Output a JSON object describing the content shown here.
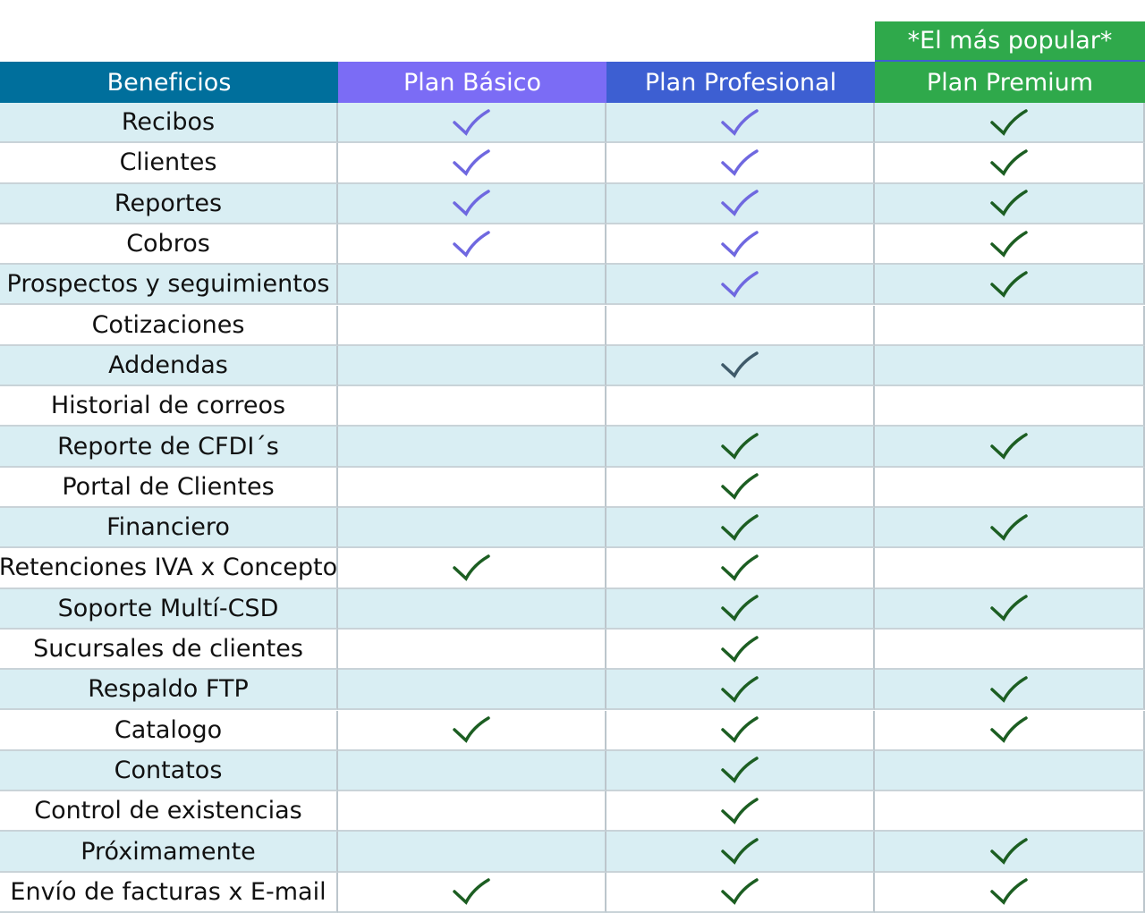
{
  "badge": "*El más popular*",
  "header": [
    "Beneficios",
    "Plan Básico",
    "Plan Profesional",
    "Plan Premium"
  ],
  "header_colors": [
    "#006f9c",
    "#7b6cf5",
    "#3d5fd2",
    "#2fa94b"
  ],
  "row_colors": [
    "#d9eef3",
    "#ffffff"
  ],
  "rows": [
    {
      "label": "Recibos",
      "checks": [
        "#6f68e0",
        "#6f68e0",
        "#1c5e22"
      ]
    },
    {
      "label": "Clientes",
      "checks": [
        "#6f68e0",
        "#6f68e0",
        "#1c5e22"
      ]
    },
    {
      "label": "Reportes",
      "checks": [
        "#6f68e0",
        "#6f68e0",
        "#1c5e22"
      ]
    },
    {
      "label": "Cobros",
      "checks": [
        "#6f68e0",
        "#6f68e0",
        "#1c5e22"
      ]
    },
    {
      "label": "Prospectos y seguimientos",
      "checks": [
        null,
        "#6f68e0",
        "#1c5e22"
      ]
    },
    {
      "label": "Cotizaciones",
      "checks": [
        null,
        null,
        null
      ]
    },
    {
      "label": "Addendas",
      "checks": [
        null,
        "#3f5a6a",
        null
      ]
    },
    {
      "label": "Historial de correos",
      "checks": [
        null,
        null,
        null
      ]
    },
    {
      "label": "Reporte de CFDI´s",
      "checks": [
        null,
        "#1c5e22",
        "#1c5e22"
      ]
    },
    {
      "label": "Portal de Clientes",
      "checks": [
        null,
        "#1c5e22",
        null
      ]
    },
    {
      "label": "Financiero",
      "checks": [
        null,
        "#1c5e22",
        "#1c5e22"
      ]
    },
    {
      "label": "Retenciones IVA x Concepto",
      "checks": [
        "#1c5e22",
        "#1c5e22",
        null
      ]
    },
    {
      "label": "Soporte Multí-CSD",
      "checks": [
        null,
        "#1c5e22",
        "#1c5e22"
      ]
    },
    {
      "label": "Sucursales de clientes",
      "checks": [
        null,
        "#1c5e22",
        null
      ]
    },
    {
      "label": "Respaldo FTP",
      "checks": [
        null,
        "#1c5e22",
        "#1c5e22"
      ]
    },
    {
      "label": "Catalogo",
      "checks": [
        "#1c5e22",
        "#1c5e22",
        "#1c5e22"
      ]
    },
    {
      "label": "Contatos",
      "checks": [
        null,
        "#1c5e22",
        null
      ]
    },
    {
      "label": "Control de existencias",
      "checks": [
        null,
        "#1c5e22",
        null
      ]
    },
    {
      "label": "Próximamente",
      "checks": [
        null,
        "#1c5e22",
        "#1c5e22"
      ]
    },
    {
      "label": "Envío de facturas x E-mail",
      "checks": [
        "#1c5e22",
        "#1c5e22",
        "#1c5e22"
      ]
    }
  ]
}
